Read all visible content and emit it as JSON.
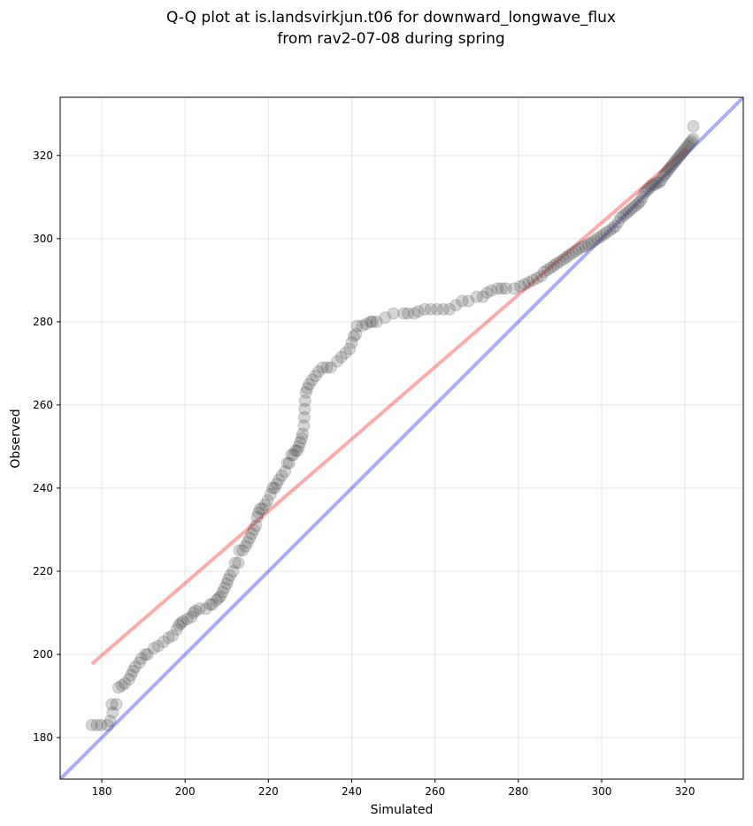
{
  "chart_data": {
    "type": "scatter",
    "title": [
      "Q-Q plot at is.landsvirkjun.t06 for downward_longwave_flux",
      "from rav2-07-08 during spring"
    ],
    "xlabel": "Simulated",
    "ylabel": "Observed",
    "xlim": [
      170,
      334
    ],
    "ylim": [
      170,
      334
    ],
    "xticks": [
      180,
      200,
      220,
      240,
      260,
      280,
      300,
      320
    ],
    "yticks": [
      180,
      200,
      220,
      240,
      260,
      280,
      300,
      320
    ],
    "grid": true,
    "reference_lines": [
      {
        "color": "#0000ff",
        "alpha": 0.33,
        "points": [
          [
            170,
            170
          ],
          [
            334,
            334
          ]
        ]
      },
      {
        "color": "#ff0000",
        "alpha": 0.33,
        "points": [
          [
            177.6,
            197.7
          ],
          [
            320.5,
            321.6
          ]
        ]
      }
    ],
    "points_color": "#444444",
    "points": [
      [
        177.6,
        183
      ],
      [
        178.8,
        183
      ],
      [
        179.8,
        183
      ],
      [
        181.4,
        183
      ],
      [
        182,
        184
      ],
      [
        182.6,
        186
      ],
      [
        182.4,
        188
      ],
      [
        183.5,
        188
      ],
      [
        184,
        192
      ],
      [
        184.8,
        192.5
      ],
      [
        185.5,
        193
      ],
      [
        186.5,
        194
      ],
      [
        187,
        195
      ],
      [
        187.5,
        196
      ],
      [
        188,
        197
      ],
      [
        189,
        198
      ],
      [
        189.5,
        199
      ],
      [
        190.5,
        200
      ],
      [
        191,
        200
      ],
      [
        192.5,
        201.5
      ],
      [
        193.5,
        202
      ],
      [
        194.8,
        203
      ],
      [
        196,
        204
      ],
      [
        197,
        204.5
      ],
      [
        198,
        206
      ],
      [
        198.5,
        207
      ],
      [
        199,
        207.5
      ],
      [
        199.5,
        208
      ],
      [
        200.5,
        208.5
      ],
      [
        201.5,
        209
      ],
      [
        202,
        210
      ],
      [
        202.5,
        210.5
      ],
      [
        203.5,
        211
      ],
      [
        205,
        211
      ],
      [
        206,
        212
      ],
      [
        206.5,
        212
      ],
      [
        207.5,
        213
      ],
      [
        208,
        213.5
      ],
      [
        208.5,
        214
      ],
      [
        209,
        215
      ],
      [
        209.5,
        216
      ],
      [
        210,
        217
      ],
      [
        210.3,
        218
      ],
      [
        210.8,
        219
      ],
      [
        211.5,
        220
      ],
      [
        212,
        222
      ],
      [
        212.8,
        222
      ],
      [
        213,
        225
      ],
      [
        213.8,
        225
      ],
      [
        214.5,
        226
      ],
      [
        215,
        227
      ],
      [
        215.5,
        228
      ],
      [
        216,
        229
      ],
      [
        216.5,
        230
      ],
      [
        217,
        231
      ],
      [
        217.3,
        233
      ],
      [
        217.6,
        234
      ],
      [
        218,
        235
      ],
      [
        218.5,
        235
      ],
      [
        219.2,
        236
      ],
      [
        219.8,
        237
      ],
      [
        220.5,
        238.5
      ],
      [
        221,
        240
      ],
      [
        221.5,
        240
      ],
      [
        222,
        241
      ],
      [
        222.5,
        242
      ],
      [
        223.2,
        243
      ],
      [
        224,
        244
      ],
      [
        224.5,
        246
      ],
      [
        225,
        246
      ],
      [
        225.5,
        248
      ],
      [
        226,
        248
      ],
      [
        226.5,
        249
      ],
      [
        227,
        249
      ],
      [
        227.3,
        250
      ],
      [
        227.6,
        251
      ],
      [
        228,
        252
      ],
      [
        228.2,
        253
      ],
      [
        228.5,
        255
      ],
      [
        228.6,
        257
      ],
      [
        228.7,
        259
      ],
      [
        228.8,
        261
      ],
      [
        229,
        263
      ],
      [
        229.3,
        264
      ],
      [
        229.8,
        265
      ],
      [
        230.5,
        266
      ],
      [
        231.3,
        267
      ],
      [
        232,
        268
      ],
      [
        233,
        269
      ],
      [
        234,
        269
      ],
      [
        235,
        269
      ],
      [
        236.5,
        270.5
      ],
      [
        237.5,
        271.5
      ],
      [
        238.5,
        272.5
      ],
      [
        239.5,
        273.5
      ],
      [
        240,
        275
      ],
      [
        240.5,
        276.5
      ],
      [
        241,
        277
      ],
      [
        241.3,
        279
      ],
      [
        242.5,
        279
      ],
      [
        243.5,
        279.5
      ],
      [
        244.5,
        280
      ],
      [
        245,
        280
      ],
      [
        246,
        280
      ],
      [
        248,
        281
      ],
      [
        250,
        282
      ],
      [
        252.5,
        282
      ],
      [
        253.5,
        282
      ],
      [
        255,
        282
      ],
      [
        256,
        282.5
      ],
      [
        257.5,
        283
      ],
      [
        259,
        283
      ],
      [
        260.5,
        283
      ],
      [
        262,
        283
      ],
      [
        263.5,
        283
      ],
      [
        265,
        284
      ],
      [
        266.5,
        285
      ],
      [
        268,
        285
      ],
      [
        270,
        286
      ],
      [
        271.5,
        286
      ],
      [
        272.5,
        287
      ],
      [
        273.5,
        287.5
      ],
      [
        275,
        288
      ],
      [
        276,
        288
      ],
      [
        277,
        288
      ],
      [
        279,
        288
      ],
      [
        280.5,
        288.5
      ],
      [
        281.5,
        289
      ],
      [
        282.5,
        289.5
      ],
      [
        283.5,
        290
      ],
      [
        284.5,
        290.5
      ],
      [
        285.5,
        291
      ],
      [
        286.2,
        292
      ],
      [
        287,
        292.5
      ],
      [
        287.8,
        293
      ],
      [
        288.5,
        293.5
      ],
      [
        289.2,
        294
      ],
      [
        290,
        294.5
      ],
      [
        290.8,
        295
      ],
      [
        291.5,
        295.5
      ],
      [
        292.2,
        296
      ],
      [
        293,
        296.5
      ],
      [
        293.8,
        297
      ],
      [
        294.5,
        297.5
      ],
      [
        295.3,
        298
      ],
      [
        296,
        298.2
      ],
      [
        296.8,
        298.6
      ],
      [
        297.5,
        299
      ],
      [
        298.2,
        299.5
      ],
      [
        299,
        300
      ],
      [
        299.8,
        300.5
      ],
      [
        300.5,
        301
      ],
      [
        301.2,
        301.5
      ],
      [
        302,
        302
      ],
      [
        302.7,
        302.5
      ],
      [
        303.3,
        303
      ],
      [
        304,
        304
      ],
      [
        304.6,
        305
      ],
      [
        305.2,
        305.5
      ],
      [
        305.8,
        306
      ],
      [
        306.4,
        306.5
      ],
      [
        307,
        307
      ],
      [
        307.6,
        307.5
      ],
      [
        308.2,
        308
      ],
      [
        308.8,
        308.5
      ],
      [
        309.3,
        309
      ],
      [
        309.8,
        310
      ],
      [
        310.3,
        311
      ],
      [
        310.8,
        311.5
      ],
      [
        311.3,
        312
      ],
      [
        311.8,
        312.5
      ],
      [
        312.3,
        313
      ],
      [
        312.8,
        313
      ],
      [
        313.3,
        313.5
      ],
      [
        313.8,
        313.5
      ],
      [
        314.3,
        314
      ],
      [
        314.8,
        315
      ],
      [
        315.2,
        315.5
      ],
      [
        315.6,
        316
      ],
      [
        316,
        316.5
      ],
      [
        316.4,
        317
      ],
      [
        316.8,
        317.5
      ],
      [
        317.2,
        318
      ],
      [
        317.6,
        318.5
      ],
      [
        318,
        319
      ],
      [
        318.4,
        319.5
      ],
      [
        318.8,
        320
      ],
      [
        319.2,
        320.5
      ],
      [
        319.6,
        321
      ],
      [
        320,
        321.5
      ],
      [
        320.4,
        322
      ],
      [
        320.8,
        322.5
      ],
      [
        321.2,
        323
      ],
      [
        321.6,
        323.5
      ],
      [
        322,
        324
      ],
      [
        322,
        327
      ]
    ]
  }
}
